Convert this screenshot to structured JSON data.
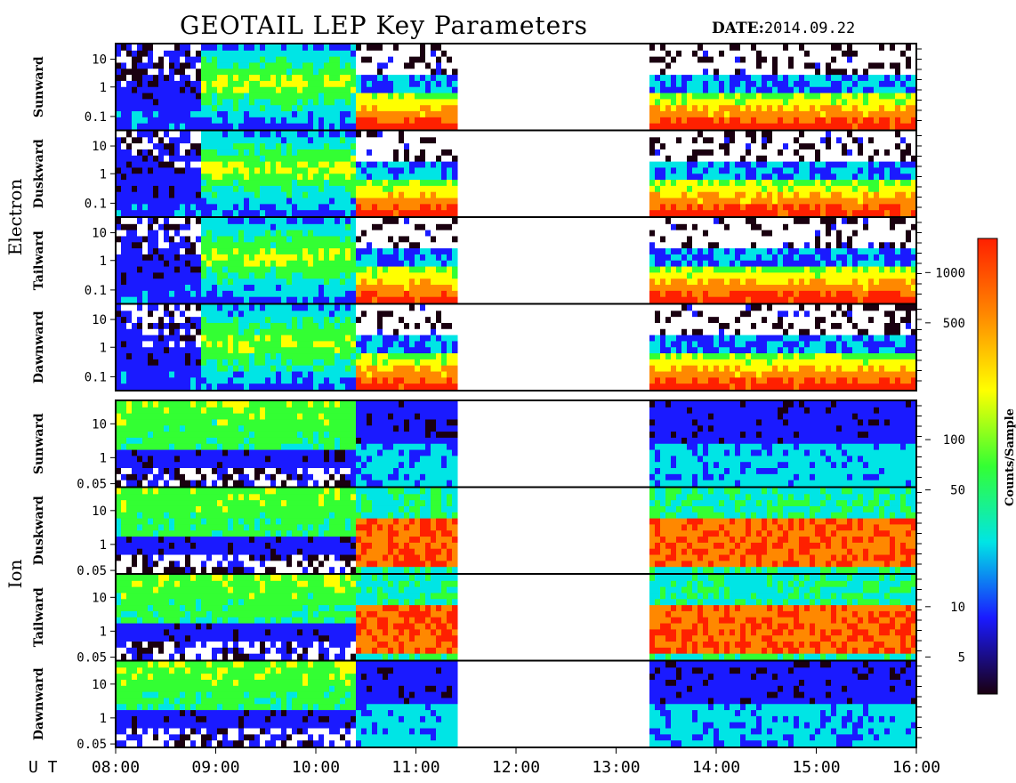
{
  "header": {
    "title": "GEOTAIL LEP Key Parameters",
    "date_label": "DATE:",
    "date_value": "2014.09.22"
  },
  "chart_data": {
    "type": "heatmap",
    "title": "GEOTAIL LEP Key Parameters",
    "date": "2014.09.22",
    "x_axis_label": "U T",
    "x_ticks": [
      "08:00",
      "09:00",
      "10:00",
      "11:00",
      "12:00",
      "13:00",
      "14:00",
      "15:00",
      "16:00"
    ],
    "x_range_hours": [
      8,
      16
    ],
    "data_gaps_hours": [
      [
        11.4,
        13.3
      ]
    ],
    "groups": [
      {
        "name": "Electron",
        "y_scale": "log",
        "y_ticks": [
          "10",
          "1",
          "0.1"
        ],
        "panels": [
          {
            "name": "Sunward"
          },
          {
            "name": "Duskward"
          },
          {
            "name": "Tailward"
          },
          {
            "name": "Dawnward"
          }
        ]
      },
      {
        "name": "Ion",
        "y_scale": "log",
        "y_ticks": [
          "10",
          "1",
          "0.05"
        ],
        "panels": [
          {
            "name": "Sunward"
          },
          {
            "name": "Duskward"
          },
          {
            "name": "Tailward"
          },
          {
            "name": "Dawnward"
          }
        ]
      }
    ],
    "colorbar": {
      "label": "Counts/Sample",
      "scale": "log",
      "range": [
        3,
        1600
      ],
      "ticks": [
        "1000",
        "500",
        "100",
        "50",
        "10",
        "5"
      ],
      "colors": [
        "#1a0010",
        "#1a1aff",
        "#00e5e5",
        "#33ff33",
        "#ffff00",
        "#ff8800",
        "#ff2000"
      ]
    }
  }
}
